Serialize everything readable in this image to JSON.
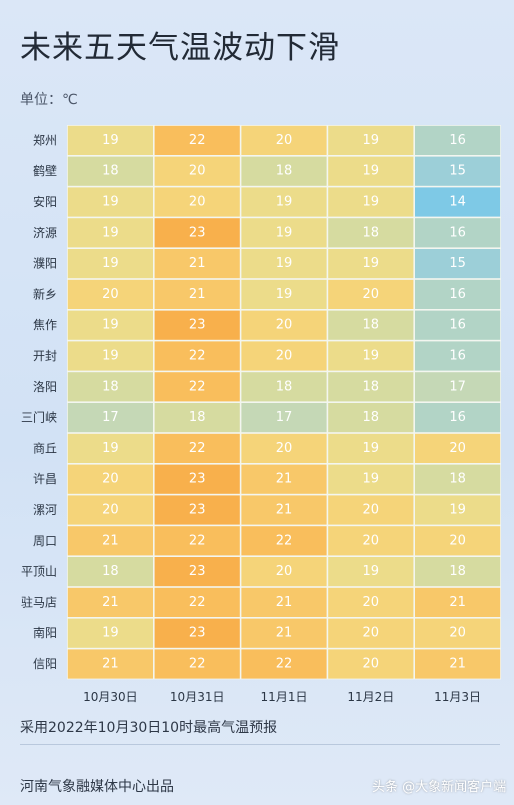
{
  "title": "未来五天气温波动下滑",
  "unit_label": "单位：℃",
  "footnote": "采用2022年10月30日10时最高气温预报",
  "credit": "河南气象融媒体中心出品",
  "watermark": "头条 @大象新闻客户端",
  "chart_data": {
    "type": "heatmap",
    "title": "未来五天气温波动下滑",
    "unit": "℃",
    "columns": [
      "10月30日",
      "10月31日",
      "11月1日",
      "11月2日",
      "11月3日"
    ],
    "rows": [
      "郑州",
      "鹤壁",
      "安阳",
      "济源",
      "濮阳",
      "新乡",
      "焦作",
      "开封",
      "洛阳",
      "三门峡",
      "商丘",
      "许昌",
      "漯河",
      "周口",
      "平顶山",
      "驻马店",
      "南阳",
      "信阳"
    ],
    "values": [
      [
        19,
        22,
        20,
        19,
        16
      ],
      [
        18,
        20,
        18,
        19,
        15
      ],
      [
        19,
        20,
        19,
        19,
        14
      ],
      [
        19,
        23,
        19,
        18,
        16
      ],
      [
        19,
        21,
        19,
        19,
        15
      ],
      [
        20,
        21,
        19,
        20,
        16
      ],
      [
        19,
        23,
        20,
        18,
        16
      ],
      [
        19,
        22,
        20,
        19,
        16
      ],
      [
        18,
        22,
        18,
        18,
        17
      ],
      [
        17,
        18,
        17,
        18,
        16
      ],
      [
        19,
        22,
        20,
        19,
        20
      ],
      [
        20,
        23,
        21,
        19,
        18
      ],
      [
        20,
        23,
        21,
        20,
        19
      ],
      [
        21,
        22,
        22,
        20,
        20
      ],
      [
        18,
        23,
        20,
        19,
        18
      ],
      [
        21,
        22,
        21,
        20,
        21
      ],
      [
        19,
        23,
        21,
        20,
        20
      ],
      [
        21,
        22,
        22,
        20,
        21
      ]
    ],
    "color_scale": {
      "14": "#7ec9e6",
      "15": "#9ccfd8",
      "16": "#b2d4c6",
      "17": "#c5d8b6",
      "18": "#d6dba0",
      "19": "#ecdc8a",
      "20": "#f5d479",
      "21": "#f8c869",
      "22": "#f9be5c",
      "23": "#f8b04c"
    },
    "label_color": "#ffffff"
  }
}
